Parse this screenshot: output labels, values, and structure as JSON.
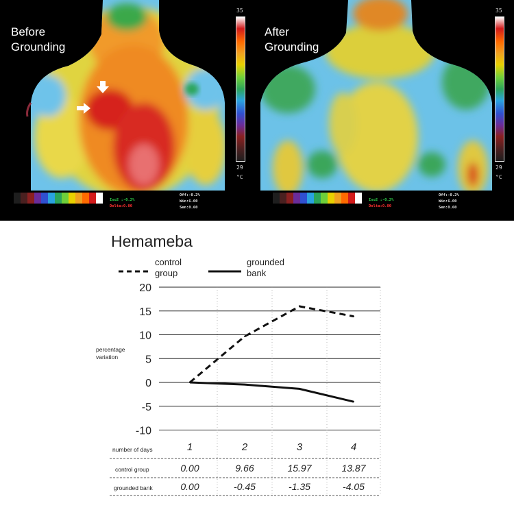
{
  "thermal": {
    "before_label": [
      "Before",
      "Grounding"
    ],
    "after_label": [
      "After",
      "Grounding"
    ],
    "scale_max": "35",
    "scale_min": "29",
    "scale_unit": "°C",
    "scale_colors": [
      "#ffffff",
      "#d21b1b",
      "#ff6a00",
      "#f0a020",
      "#e8d000",
      "#6ecf3a",
      "#2ca55a",
      "#2aa3e0",
      "#3050d0",
      "#6a2c9a",
      "#8a2020",
      "#4a2020",
      "#1e1e1e"
    ],
    "readout_left": [
      "Off:-0.2%",
      "Win:6.00",
      "Sen:0.60"
    ],
    "readout_right": [
      "Off:-0.2%",
      "Win:6.00",
      "Sen:0.60"
    ],
    "iso_left": [
      "Iso2 :-0.2%",
      "Delta:0.00"
    ],
    "iso_right": [
      "Iso2 :-0.2%",
      "Delta:0.00"
    ]
  },
  "chart_data": {
    "type": "line",
    "title": "Hemameba",
    "ylabel": [
      "percentage",
      "variation"
    ],
    "ylim": [
      -10,
      20
    ],
    "yticks": [
      20,
      15,
      10,
      5,
      0,
      -5,
      -10
    ],
    "x": [
      1,
      2,
      3,
      4
    ],
    "series": [
      {
        "name": [
          "control",
          "group"
        ],
        "style": "dashed",
        "values": [
          0.0,
          9.66,
          15.97,
          13.87
        ]
      },
      {
        "name": [
          "grounded",
          "bank"
        ],
        "style": "solid",
        "values": [
          0.0,
          -0.45,
          -1.35,
          -4.05
        ]
      }
    ],
    "table": {
      "header_label": "number of days",
      "days": [
        "1",
        "2",
        "3",
        "4"
      ],
      "rows": [
        {
          "label": "control group",
          "values": [
            "0.00",
            "9.66",
            "15.97",
            "13.87"
          ]
        },
        {
          "label": "grounded bank",
          "values": [
            "0.00",
            "-0.45",
            "-1.35",
            "-4.05"
          ]
        }
      ]
    },
    "grid": true,
    "legend": "top-left"
  }
}
